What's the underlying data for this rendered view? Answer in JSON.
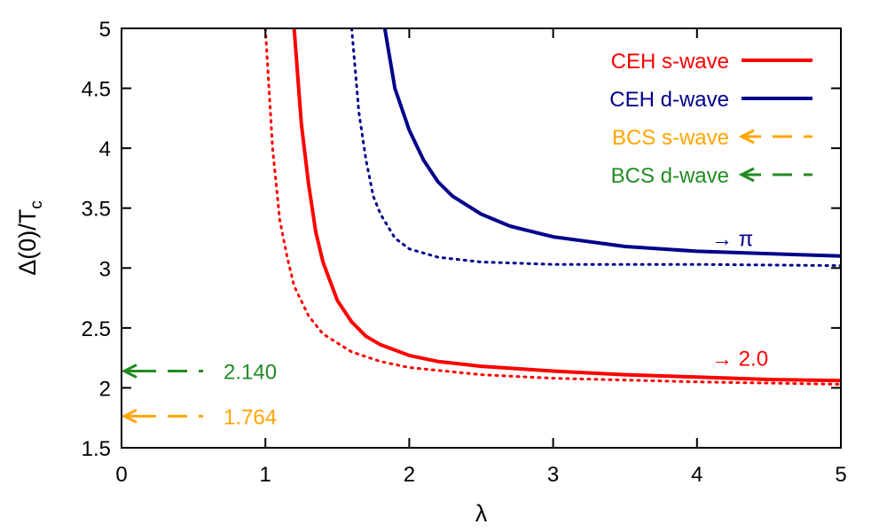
{
  "chart_data": {
    "type": "line",
    "title": "",
    "xlabel": "λ",
    "ylabel": "Δ(0)/T",
    "ylabel_subscript": "c",
    "xlim": [
      0,
      5
    ],
    "ylim": [
      1.5,
      5
    ],
    "x_ticks": [
      0,
      1,
      2,
      3,
      4,
      5
    ],
    "x_tick_labels": [
      "0",
      "1",
      "2",
      "3",
      "4",
      "5"
    ],
    "y_ticks": [
      1.5,
      2,
      2.5,
      3,
      3.5,
      4,
      4.5,
      5
    ],
    "y_tick_labels": [
      "1.5",
      "2",
      "2.5",
      "3",
      "3.5",
      "4",
      "4.5",
      "5"
    ],
    "grid": false,
    "legend_position": "top-right",
    "series": [
      {
        "name": "CEH s-wave",
        "color": "#ff0000",
        "style": "solid",
        "in_legend": true,
        "x": [
          1.2,
          1.25,
          1.3,
          1.35,
          1.4,
          1.5,
          1.6,
          1.7,
          1.8,
          2.0,
          2.2,
          2.5,
          3.0,
          3.5,
          4.0,
          4.5,
          5.0
        ],
        "y": [
          5.0,
          4.2,
          3.7,
          3.3,
          3.05,
          2.73,
          2.55,
          2.43,
          2.36,
          2.27,
          2.22,
          2.18,
          2.14,
          2.11,
          2.09,
          2.07,
          2.06
        ]
      },
      {
        "name": "CEH d-wave",
        "color": "#00008b",
        "style": "solid",
        "in_legend": true,
        "x": [
          1.83,
          1.9,
          2.0,
          2.1,
          2.2,
          2.3,
          2.5,
          2.7,
          3.0,
          3.5,
          4.0,
          4.5,
          5.0
        ],
        "y": [
          5.0,
          4.5,
          4.15,
          3.9,
          3.72,
          3.6,
          3.45,
          3.35,
          3.26,
          3.18,
          3.14,
          3.12,
          3.1
        ]
      },
      {
        "name": "CEH s-wave (dotted)",
        "color": "#ff0000",
        "style": "dotted",
        "in_legend": false,
        "x": [
          1.0,
          1.05,
          1.1,
          1.15,
          1.2,
          1.3,
          1.4,
          1.6,
          1.8,
          2.0,
          2.5,
          3.0,
          4.0,
          5.0
        ],
        "y": [
          5.0,
          4.0,
          3.4,
          3.1,
          2.85,
          2.6,
          2.45,
          2.3,
          2.22,
          2.17,
          2.11,
          2.08,
          2.05,
          2.03
        ]
      },
      {
        "name": "CEH d-wave (dotted)",
        "color": "#00008b",
        "style": "dotted",
        "in_legend": false,
        "x": [
          1.6,
          1.65,
          1.7,
          1.75,
          1.8,
          1.9,
          2.0,
          2.2,
          2.5,
          3.0,
          3.5,
          4.0,
          5.0
        ],
        "y": [
          5.0,
          4.3,
          3.9,
          3.6,
          3.45,
          3.25,
          3.16,
          3.09,
          3.05,
          3.03,
          3.03,
          3.03,
          3.02
        ]
      },
      {
        "name": "BCS s-wave",
        "color": "#ffa500",
        "style": "dashed",
        "in_legend": true,
        "value": 1.764,
        "value_label": "1.764"
      },
      {
        "name": "BCS d-wave",
        "color": "#228b22",
        "style": "dashed",
        "in_legend": true,
        "value": 2.14,
        "value_label": "2.140"
      }
    ],
    "annotations": [
      {
        "text": "→ π",
        "x": 4.1,
        "y": 3.25,
        "color": "#00008b"
      },
      {
        "text": "→ 2.0",
        "x": 4.1,
        "y": 2.25,
        "color": "#ff0000"
      }
    ]
  }
}
